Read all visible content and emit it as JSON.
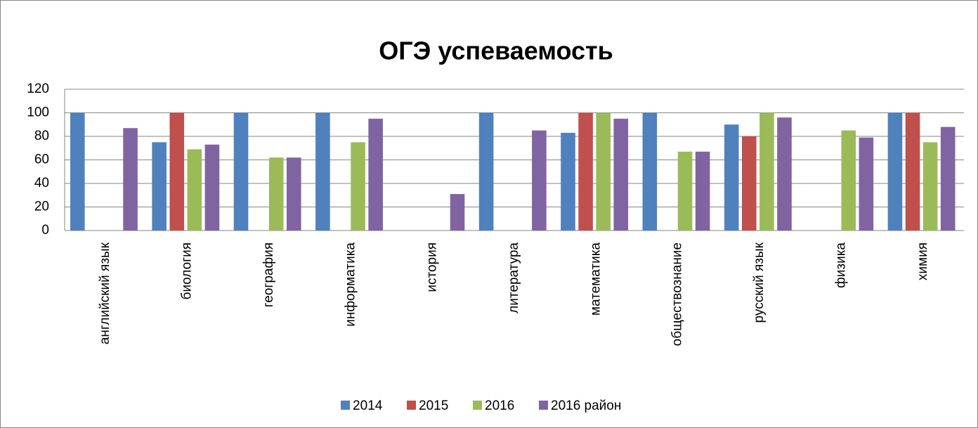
{
  "chart_data": {
    "type": "bar",
    "title": "ОГЭ успеваемость",
    "categories": [
      "английский язык",
      "биология",
      "география",
      "информатика",
      "история",
      "литература",
      "математика",
      "обществознание",
      "русский язык",
      "физика",
      "химия"
    ],
    "series": [
      {
        "name": "2014",
        "color": "#4f81bd",
        "values": [
          100,
          75,
          100,
          100,
          null,
          100,
          83,
          100,
          90,
          null,
          100
        ]
      },
      {
        "name": "2015",
        "color": "#c0504d",
        "values": [
          null,
          100,
          null,
          null,
          null,
          null,
          100,
          null,
          80,
          null,
          100
        ]
      },
      {
        "name": "2016",
        "color": "#9bbb59",
        "values": [
          null,
          69,
          62,
          75,
          null,
          null,
          100,
          67,
          100,
          85,
          75
        ]
      },
      {
        "name": "2016 район",
        "color": "#8064a2",
        "values": [
          87,
          73,
          62,
          95,
          31,
          85,
          95,
          67,
          96,
          79,
          88
        ]
      }
    ],
    "ylim": [
      0,
      120
    ],
    "yticks": [
      0,
      20,
      40,
      60,
      80,
      100,
      120
    ],
    "grid": true,
    "legend": "bottom"
  }
}
